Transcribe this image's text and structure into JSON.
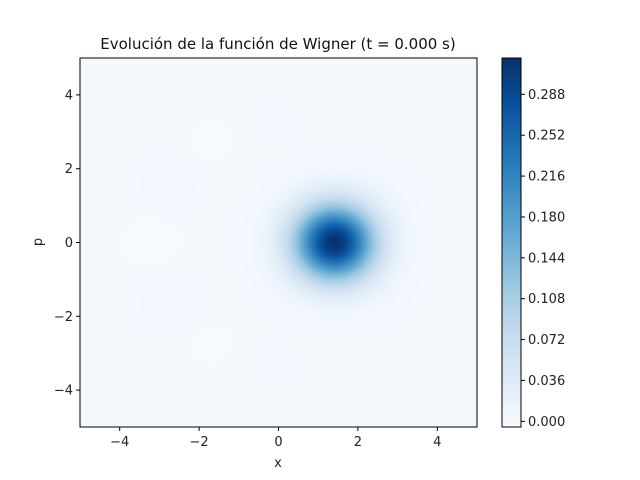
{
  "chart_data": {
    "type": "heatmap",
    "title": "Evolución de la función de Wigner (t = 0.000 s)",
    "xlabel": "x",
    "ylabel": "p",
    "xlim": [
      -5,
      5
    ],
    "ylim": [
      -5,
      5
    ],
    "x_ticks": [
      -4,
      -2,
      0,
      2,
      4
    ],
    "y_ticks": [
      -4,
      -2,
      0,
      2,
      4
    ],
    "x_tick_labels": [
      "−4",
      "−2",
      "0",
      "2",
      "4"
    ],
    "y_tick_labels": [
      "−4",
      "−2",
      "0",
      "2",
      "4"
    ],
    "peak": {
      "x": 1.41,
      "p": 0.0,
      "value": 0.318
    },
    "colormap": "Blues",
    "colorbar": {
      "range": [
        -0.005,
        0.32
      ],
      "ticks": [
        0.0,
        0.036,
        0.072,
        0.108,
        0.144,
        0.18,
        0.216,
        0.252,
        0.288
      ],
      "tick_labels": [
        "0.000",
        "0.036",
        "0.072",
        "0.108",
        "0.144",
        "0.180",
        "0.216",
        "0.252",
        "0.288"
      ]
    }
  }
}
